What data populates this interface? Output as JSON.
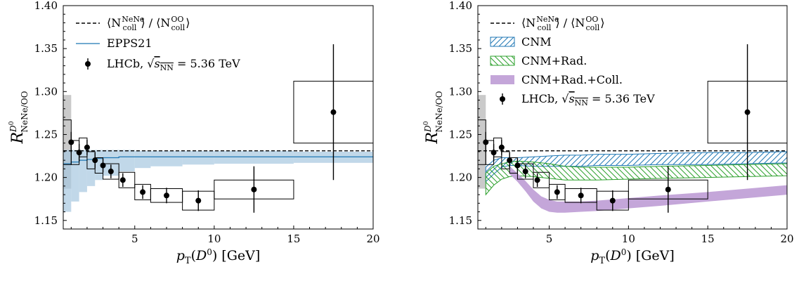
{
  "chart_data": [
    {
      "type": "scatter",
      "xlabel": "p_T(D^0) [GeV]",
      "ylabel": "R^{D^0}_{NeNe/OO}",
      "xlim": [
        0.5,
        20
      ],
      "ylim": [
        1.14,
        1.4
      ],
      "xticks": [
        5,
        10,
        15,
        20
      ],
      "yticks": [
        1.15,
        1.2,
        1.25,
        1.3,
        1.35,
        1.4
      ],
      "grid": false,
      "legend_position": "top-left",
      "legend": [
        "⟨N_coll^NeNe⟩ / ⟨N_coll^OO⟩",
        "EPPS21",
        "LHCb, √s_NN = 5.36 TeV"
      ],
      "ncoll_ratio": 1.231,
      "low_pt_grey_band": {
        "x": [
          0.5,
          1.0
        ],
        "y": [
          1.187,
          1.296
        ]
      },
      "data": {
        "name": "LHCb, √s_NN = 5.36 TeV",
        "x": [
          1.0,
          1.5,
          2.0,
          2.5,
          3.0,
          3.5,
          4.25,
          5.5,
          7.0,
          9.0,
          12.5,
          17.5
        ],
        "x_low": [
          0.5,
          1.0,
          1.5,
          2.0,
          2.5,
          3.0,
          4.0,
          5.0,
          6.0,
          8.0,
          10.0,
          15.0
        ],
        "x_high": [
          1.0,
          1.5,
          2.0,
          2.5,
          3.0,
          4.0,
          5.0,
          6.0,
          8.0,
          10.0,
          15.0,
          20.0
        ],
        "y": [
          1.241,
          1.229,
          1.235,
          1.22,
          1.214,
          1.207,
          1.197,
          1.183,
          1.179,
          1.173,
          1.186,
          1.276
        ],
        "stat_err": [
          0.012,
          0.01,
          0.009,
          0.009,
          0.008,
          0.008,
          0.008,
          0.008,
          0.009,
          0.012,
          0.027,
          0.079
        ],
        "sys_err": [
          0.026,
          0.014,
          0.011,
          0.01,
          0.009,
          0.009,
          0.009,
          0.009,
          0.008,
          0.011,
          0.011,
          0.036
        ]
      },
      "epps21": {
        "name": "EPPS21",
        "x_low": [
          0.5,
          1.0,
          1.5,
          2.0,
          2.5,
          3.0,
          4.0,
          5.0,
          6.0,
          8.0,
          10.0,
          15.0
        ],
        "x_high": [
          1.0,
          1.5,
          2.0,
          2.5,
          3.0,
          4.0,
          5.0,
          6.0,
          8.0,
          10.0,
          15.0,
          20.0
        ],
        "lower": [
          1.16,
          1.172,
          1.183,
          1.19,
          1.197,
          1.202,
          1.207,
          1.211,
          1.213,
          1.215,
          1.216,
          1.217
        ],
        "upper": [
          1.232,
          1.232,
          1.232,
          1.232,
          1.232,
          1.232,
          1.232,
          1.231,
          1.231,
          1.231,
          1.231,
          1.23
        ],
        "central": [
          1.216,
          1.218,
          1.22,
          1.221,
          1.222,
          1.223,
          1.224,
          1.224,
          1.224,
          1.224,
          1.224,
          1.224
        ]
      }
    },
    {
      "type": "scatter",
      "xlabel": "p_T(D^0) [GeV]",
      "ylabel": "R^{D^0}_{NeNe/OO}",
      "xlim": [
        0.5,
        20
      ],
      "ylim": [
        1.14,
        1.4
      ],
      "xticks": [
        5,
        10,
        15,
        20
      ],
      "yticks": [
        1.15,
        1.2,
        1.25,
        1.3,
        1.35,
        1.4
      ],
      "grid": false,
      "legend_position": "top-left",
      "legend": [
        "⟨N_coll^NeNe⟩ / ⟨N_coll^OO⟩",
        "CNM",
        "CNM+Rad.",
        "CNM+Rad.+Coll.",
        "LHCb, √s_NN = 5.36 TeV"
      ],
      "ncoll_ratio": 1.231,
      "low_pt_grey_band": {
        "x": [
          0.5,
          1.0
        ],
        "y": [
          1.187,
          1.296
        ]
      },
      "data": {
        "name": "LHCb, √s_NN = 5.36 TeV",
        "x": [
          1.0,
          1.5,
          2.0,
          2.5,
          3.0,
          3.5,
          4.25,
          5.5,
          7.0,
          9.0,
          12.5,
          17.5
        ],
        "x_low": [
          0.5,
          1.0,
          1.5,
          2.0,
          2.5,
          3.0,
          4.0,
          5.0,
          6.0,
          8.0,
          10.0,
          15.0
        ],
        "x_high": [
          1.0,
          1.5,
          2.0,
          2.5,
          3.0,
          4.0,
          5.0,
          6.0,
          8.0,
          10.0,
          15.0,
          20.0
        ],
        "y": [
          1.241,
          1.229,
          1.235,
          1.22,
          1.214,
          1.207,
          1.197,
          1.183,
          1.179,
          1.173,
          1.186,
          1.276
        ],
        "stat_err": [
          0.012,
          0.01,
          0.009,
          0.009,
          0.008,
          0.008,
          0.008,
          0.008,
          0.009,
          0.012,
          0.027,
          0.079
        ],
        "sys_err": [
          0.026,
          0.014,
          0.011,
          0.01,
          0.009,
          0.009,
          0.009,
          0.009,
          0.008,
          0.011,
          0.011,
          0.036
        ]
      },
      "bands": [
        {
          "name": "CNM",
          "color": "#1f77b4",
          "hatch": "diagonal",
          "x": [
            1.0,
            1.5,
            2.0,
            2.5,
            3.0,
            4.0,
            5.0,
            6.0,
            7.0,
            8.0,
            10.0,
            12.0,
            15.0,
            17.5,
            20.0
          ],
          "lower": [
            1.195,
            1.204,
            1.212,
            1.214,
            1.214,
            1.213,
            1.213,
            1.213,
            1.213,
            1.214,
            1.214,
            1.215,
            1.215,
            1.216,
            1.217
          ],
          "upper": [
            1.212,
            1.22,
            1.223,
            1.223,
            1.223,
            1.224,
            1.225,
            1.226,
            1.226,
            1.227,
            1.227,
            1.228,
            1.229,
            1.229,
            1.23
          ]
        },
        {
          "name": "CNM+Rad.",
          "color": "#2ca02c",
          "hatch": "antidiagonal",
          "x": [
            1.0,
            1.5,
            2.0,
            2.5,
            3.0,
            4.0,
            5.0,
            6.0,
            7.0,
            8.0,
            10.0,
            12.0,
            15.0,
            17.5,
            20.0
          ],
          "lower": [
            1.18,
            1.191,
            1.198,
            1.201,
            1.202,
            1.201,
            1.199,
            1.197,
            1.197,
            1.197,
            1.198,
            1.199,
            1.2,
            1.201,
            1.202
          ],
          "upper": [
            1.205,
            1.213,
            1.216,
            1.218,
            1.219,
            1.218,
            1.216,
            1.213,
            1.212,
            1.212,
            1.212,
            1.213,
            1.214,
            1.215,
            1.216
          ]
        },
        {
          "name": "CNM+Rad.+Coll.",
          "color": "#c4a6d9",
          "hatch": "solid",
          "x": [
            2.5,
            3.0,
            3.5,
            4.0,
            4.5,
            5.0,
            5.5,
            6.0,
            7.0,
            8.0,
            10.0,
            12.0,
            15.0,
            17.5,
            20.0
          ],
          "lower": [
            1.204,
            1.195,
            1.184,
            1.172,
            1.164,
            1.16,
            1.159,
            1.159,
            1.16,
            1.161,
            1.164,
            1.167,
            1.172,
            1.176,
            1.18
          ],
          "upper": [
            1.213,
            1.205,
            1.196,
            1.186,
            1.178,
            1.174,
            1.172,
            1.172,
            1.172,
            1.173,
            1.176,
            1.179,
            1.183,
            1.187,
            1.191
          ]
        }
      ]
    }
  ]
}
